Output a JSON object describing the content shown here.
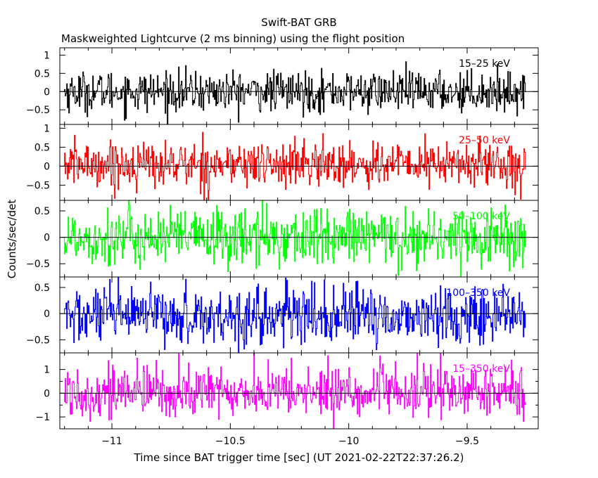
{
  "chart_data": {
    "type": "line",
    "title": "Swift-BAT GRB",
    "subtitle": "Maskweighted Lightcurve (2 ms binning) using the flight position",
    "xlabel": "Time since BAT trigger time [sec] (UT 2021-02-22T22:37:26.2)",
    "ylabel": "Counts/sec/det",
    "xlim": [
      -11.22,
      -9.2
    ],
    "x_ticks": [
      -11,
      -10.5,
      -10,
      -9.5
    ],
    "x_tick_labels": [
      "−11",
      "−10.5",
      "−10",
      "−9.5"
    ],
    "data_xrange": [
      -11.2,
      -9.25
    ],
    "panels": [
      {
        "name": "15–25 keV",
        "color": "#000000",
        "ylim": [
          -0.9,
          1.2
        ],
        "y_ticks": [
          -0.5,
          0,
          0.5,
          1
        ],
        "y_tick_labels": [
          "−0.5",
          "0",
          "0.5",
          "1"
        ],
        "amplitude": 0.55,
        "skew": 0.0
      },
      {
        "name": "25–50 keV",
        "color": "#ff0000",
        "ylim": [
          -0.9,
          1.1
        ],
        "y_ticks": [
          -0.5,
          0,
          0.5,
          1
        ],
        "y_tick_labels": [
          "−0.5",
          "0",
          "0.5",
          "1"
        ],
        "amplitude": 0.6,
        "skew": 0.05
      },
      {
        "name": "50–100 keV",
        "color": "#00ff00",
        "ylim": [
          -0.75,
          0.7
        ],
        "y_ticks": [
          -0.5,
          0,
          0.5
        ],
        "y_tick_labels": [
          "−0.5",
          "0",
          "0.5"
        ],
        "amplitude": 0.55,
        "skew": 0.0
      },
      {
        "name": "100–350 keV",
        "color": "#0000ff",
        "ylim": [
          -0.75,
          0.7
        ],
        "y_ticks": [
          -0.5,
          0,
          0.5
        ],
        "y_tick_labels": [
          "−0.5",
          "0",
          "0.5"
        ],
        "amplitude": 0.55,
        "skew": -0.05
      },
      {
        "name": "15–350 keV",
        "color": "#ff00ff",
        "ylim": [
          -1.5,
          1.7
        ],
        "y_ticks": [
          -1,
          0,
          1
        ],
        "y_ticks_minor": [
          -0.5,
          0.5
        ],
        "y_tick_labels": [
          "−1",
          "0",
          "1"
        ],
        "amplitude": 1.1,
        "skew": 0.05
      }
    ]
  }
}
